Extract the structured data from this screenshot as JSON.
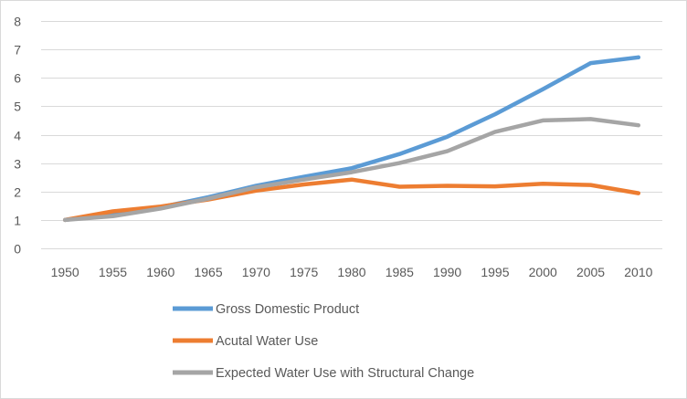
{
  "chart_data": {
    "type": "line",
    "title": "",
    "xlabel": "",
    "ylabel": "",
    "x": [
      "1950",
      "1955",
      "1960",
      "1965",
      "1970",
      "1975",
      "1980",
      "1985",
      "1990",
      "1995",
      "2000",
      "2005",
      "2010"
    ],
    "yticks": [
      "0",
      "1",
      "2",
      "3",
      "4",
      "5",
      "6",
      "7",
      "8"
    ],
    "ylim": [
      0,
      8
    ],
    "grid": true,
    "legend_position": "bottom",
    "series": [
      {
        "name": "Gross Domestic Product",
        "color": "#5b9bd5",
        "values": [
          1.0,
          1.2,
          1.45,
          1.8,
          2.2,
          2.52,
          2.82,
          3.32,
          3.93,
          4.72,
          5.6,
          6.52,
          6.72
        ]
      },
      {
        "name": "Acutal Water Use",
        "color": "#ed7d31",
        "values": [
          1.0,
          1.3,
          1.47,
          1.72,
          2.03,
          2.25,
          2.42,
          2.17,
          2.2,
          2.18,
          2.27,
          2.23,
          1.94
        ]
      },
      {
        "name": "Expected Water Use with Structural Change",
        "color": "#a5a5a5",
        "values": [
          1.0,
          1.13,
          1.4,
          1.75,
          2.15,
          2.42,
          2.68,
          3.0,
          3.42,
          4.1,
          4.5,
          4.55,
          4.33
        ]
      }
    ]
  }
}
